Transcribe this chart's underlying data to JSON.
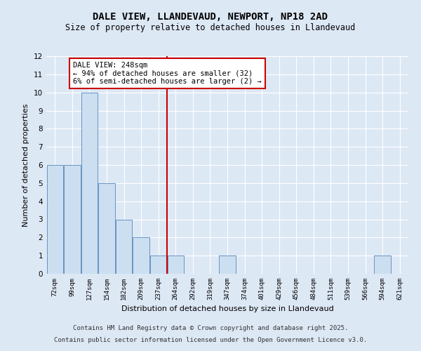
{
  "title": "DALE VIEW, LLANDEVAUD, NEWPORT, NP18 2AD",
  "subtitle": "Size of property relative to detached houses in Llandevaud",
  "xlabel": "Distribution of detached houses by size in Llandevaud",
  "ylabel": "Number of detached properties",
  "categories": [
    "72sqm",
    "99sqm",
    "127sqm",
    "154sqm",
    "182sqm",
    "209sqm",
    "237sqm",
    "264sqm",
    "292sqm",
    "319sqm",
    "347sqm",
    "374sqm",
    "401sqm",
    "429sqm",
    "456sqm",
    "484sqm",
    "511sqm",
    "539sqm",
    "566sqm",
    "594sqm",
    "621sqm"
  ],
  "values": [
    6,
    6,
    10,
    5,
    3,
    2,
    1,
    1,
    0,
    0,
    1,
    0,
    0,
    0,
    0,
    0,
    0,
    0,
    0,
    1,
    0
  ],
  "bar_color": "#ccdff0",
  "bar_edge_color": "#5588bb",
  "background_color": "#dde8f5",
  "grid_color": "#ffffff",
  "ylim": [
    0,
    12
  ],
  "yticks": [
    0,
    1,
    2,
    3,
    4,
    5,
    6,
    7,
    8,
    9,
    10,
    11,
    12
  ],
  "vline_x_index": 7,
  "vline_color": "#cc0000",
  "annotation_text": "DALE VIEW: 248sqm\n← 94% of detached houses are smaller (32)\n6% of semi-detached houses are larger (2) →",
  "annotation_box_facecolor": "#ffffff",
  "annotation_box_edgecolor": "#cc0000",
  "footer_line1": "Contains HM Land Registry data © Crown copyright and database right 2025.",
  "footer_line2": "Contains public sector information licensed under the Open Government Licence v3.0.",
  "title_fontsize": 10,
  "subtitle_fontsize": 8.5,
  "annotation_fontsize": 7.5,
  "footer_fontsize": 6.5,
  "xlabel_fontsize": 8,
  "ylabel_fontsize": 8
}
